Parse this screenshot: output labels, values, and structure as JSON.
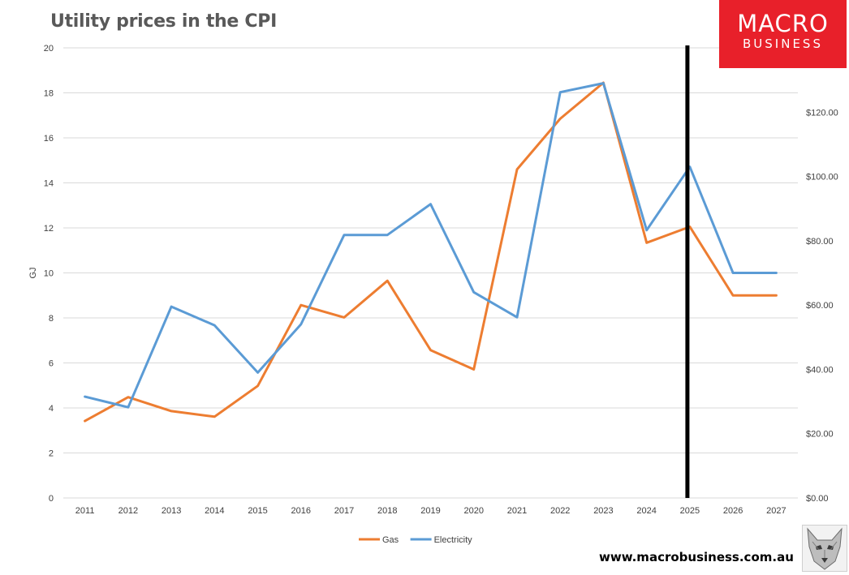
{
  "title": "Utility prices in the CPI",
  "logo": {
    "line1": "MACRO",
    "line2": "BUSINESS"
  },
  "footer_url": "www.macrobusiness.com.au",
  "colors": {
    "gas": "#ed7d31",
    "electricity": "#5b9bd5",
    "grid": "#d9d9d9",
    "marker": "#000000",
    "logo_bg": "#e8202a"
  },
  "chart_data": {
    "type": "line",
    "x": [
      "2011",
      "2012",
      "2013",
      "2014",
      "2015",
      "2016",
      "2017",
      "2018",
      "2019",
      "2020",
      "2021",
      "2022",
      "2023",
      "2024",
      "2025",
      "2026",
      "2027"
    ],
    "series": [
      {
        "name": "Gas",
        "axis": "left",
        "values": [
          3.42,
          4.48,
          3.86,
          3.61,
          4.98,
          8.57,
          8.02,
          9.65,
          6.57,
          5.71,
          14.6,
          16.85,
          18.45,
          11.34,
          12.05,
          9.0,
          9.0
        ]
      },
      {
        "name": "Electricity",
        "axis": "right",
        "values": [
          31.5,
          28.2,
          59.5,
          53.7,
          39.0,
          54.0,
          81.8,
          81.8,
          91.4,
          64.0,
          56.2,
          126.2,
          129.0,
          83.3,
          103.0,
          70.0,
          70.0
        ]
      }
    ],
    "ylabel_left": "GJ",
    "ylim_left": [
      0,
      20
    ],
    "yticks_left": [
      "0",
      "2",
      "4",
      "6",
      "8",
      "10",
      "12",
      "14",
      "16",
      "18",
      "20"
    ],
    "ylim_right": [
      0,
      140
    ],
    "yticks_right": [
      "$0.00",
      "$20.00",
      "$40.00",
      "$60.00",
      "$80.00",
      "$100.00",
      "$120.00"
    ],
    "vertical_marker_at": "2025",
    "grid": true,
    "legend": "bottom-center"
  }
}
